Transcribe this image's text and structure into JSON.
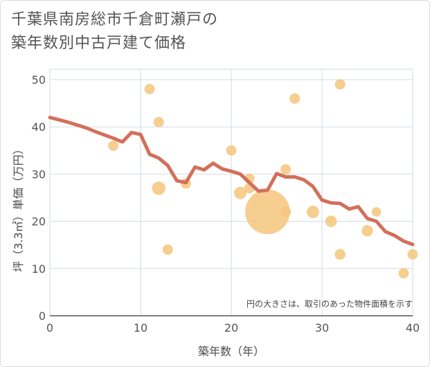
{
  "title": {
    "line1": "千葉県南房総市千倉町瀬戸の",
    "line2": "築年数別中古戸建て価格"
  },
  "colors": {
    "line": "#d36f5a",
    "bubble": "#f5c57c",
    "grid": "#d3dbe6",
    "axis": "#555555"
  },
  "chart_data": {
    "type": "scatter",
    "xlabel": "築年数（年）",
    "ylabel": "坪（3.3㎡）単価（万円）",
    "xlim": [
      0,
      40
    ],
    "ylim": [
      0,
      50
    ],
    "xticks": [
      0,
      10,
      20,
      30,
      40
    ],
    "yticks": [
      0,
      10,
      20,
      30,
      40,
      50
    ],
    "grid": true,
    "note": "円の大きさは、取引のあった物件面積を示す",
    "points": [
      {
        "x": 7,
        "y": 36,
        "size": 1
      },
      {
        "x": 11,
        "y": 48,
        "size": 1
      },
      {
        "x": 12,
        "y": 41,
        "size": 1
      },
      {
        "x": 12,
        "y": 27,
        "size": 1.3
      },
      {
        "x": 13,
        "y": 14,
        "size": 1
      },
      {
        "x": 15,
        "y": 28,
        "size": 1
      },
      {
        "x": 20,
        "y": 35,
        "size": 1
      },
      {
        "x": 21,
        "y": 26,
        "size": 1.2
      },
      {
        "x": 22,
        "y": 29,
        "size": 1
      },
      {
        "x": 22,
        "y": 27,
        "size": 1
      },
      {
        "x": 24,
        "y": 22,
        "size": 4.3
      },
      {
        "x": 26,
        "y": 31,
        "size": 1
      },
      {
        "x": 26,
        "y": 22,
        "size": 1
      },
      {
        "x": 27,
        "y": 46,
        "size": 1
      },
      {
        "x": 29,
        "y": 22,
        "size": 1.2
      },
      {
        "x": 31,
        "y": 20,
        "size": 1.1
      },
      {
        "x": 32,
        "y": 49,
        "size": 1
      },
      {
        "x": 32,
        "y": 13,
        "size": 1.05
      },
      {
        "x": 35,
        "y": 18,
        "size": 1.1
      },
      {
        "x": 36,
        "y": 22,
        "size": 0.9
      },
      {
        "x": 39,
        "y": 9,
        "size": 1
      },
      {
        "x": 40,
        "y": 13,
        "size": 1
      }
    ],
    "trend": [
      {
        "x": 0,
        "y": 42
      },
      {
        "x": 2,
        "y": 41
      },
      {
        "x": 4,
        "y": 39.8
      },
      {
        "x": 5,
        "y": 39
      },
      {
        "x": 6,
        "y": 38.3
      },
      {
        "x": 7,
        "y": 37.6
      },
      {
        "x": 8,
        "y": 36.8
      },
      {
        "x": 9,
        "y": 38.8
      },
      {
        "x": 10,
        "y": 38.4
      },
      {
        "x": 11,
        "y": 34.2
      },
      {
        "x": 12,
        "y": 33.4
      },
      {
        "x": 13,
        "y": 31.8
      },
      {
        "x": 14,
        "y": 28.6
      },
      {
        "x": 15,
        "y": 28.2
      },
      {
        "x": 16,
        "y": 31.5
      },
      {
        "x": 17,
        "y": 30.9
      },
      {
        "x": 18,
        "y": 32.3
      },
      {
        "x": 19,
        "y": 31.1
      },
      {
        "x": 20,
        "y": 30.6
      },
      {
        "x": 21,
        "y": 30
      },
      {
        "x": 22,
        "y": 28.2
      },
      {
        "x": 23,
        "y": 26.4
      },
      {
        "x": 24,
        "y": 26.6
      },
      {
        "x": 25,
        "y": 30.1
      },
      {
        "x": 26,
        "y": 29.4
      },
      {
        "x": 27,
        "y": 29.4
      },
      {
        "x": 28,
        "y": 28.8
      },
      {
        "x": 29,
        "y": 27.4
      },
      {
        "x": 30,
        "y": 24.5
      },
      {
        "x": 31,
        "y": 23.9
      },
      {
        "x": 32,
        "y": 23.8
      },
      {
        "x": 33,
        "y": 22.6
      },
      {
        "x": 34,
        "y": 23.1
      },
      {
        "x": 35,
        "y": 20.6
      },
      {
        "x": 36,
        "y": 20
      },
      {
        "x": 37,
        "y": 17.8
      },
      {
        "x": 38,
        "y": 17
      },
      {
        "x": 39,
        "y": 15.8
      },
      {
        "x": 40,
        "y": 15.1
      }
    ]
  }
}
